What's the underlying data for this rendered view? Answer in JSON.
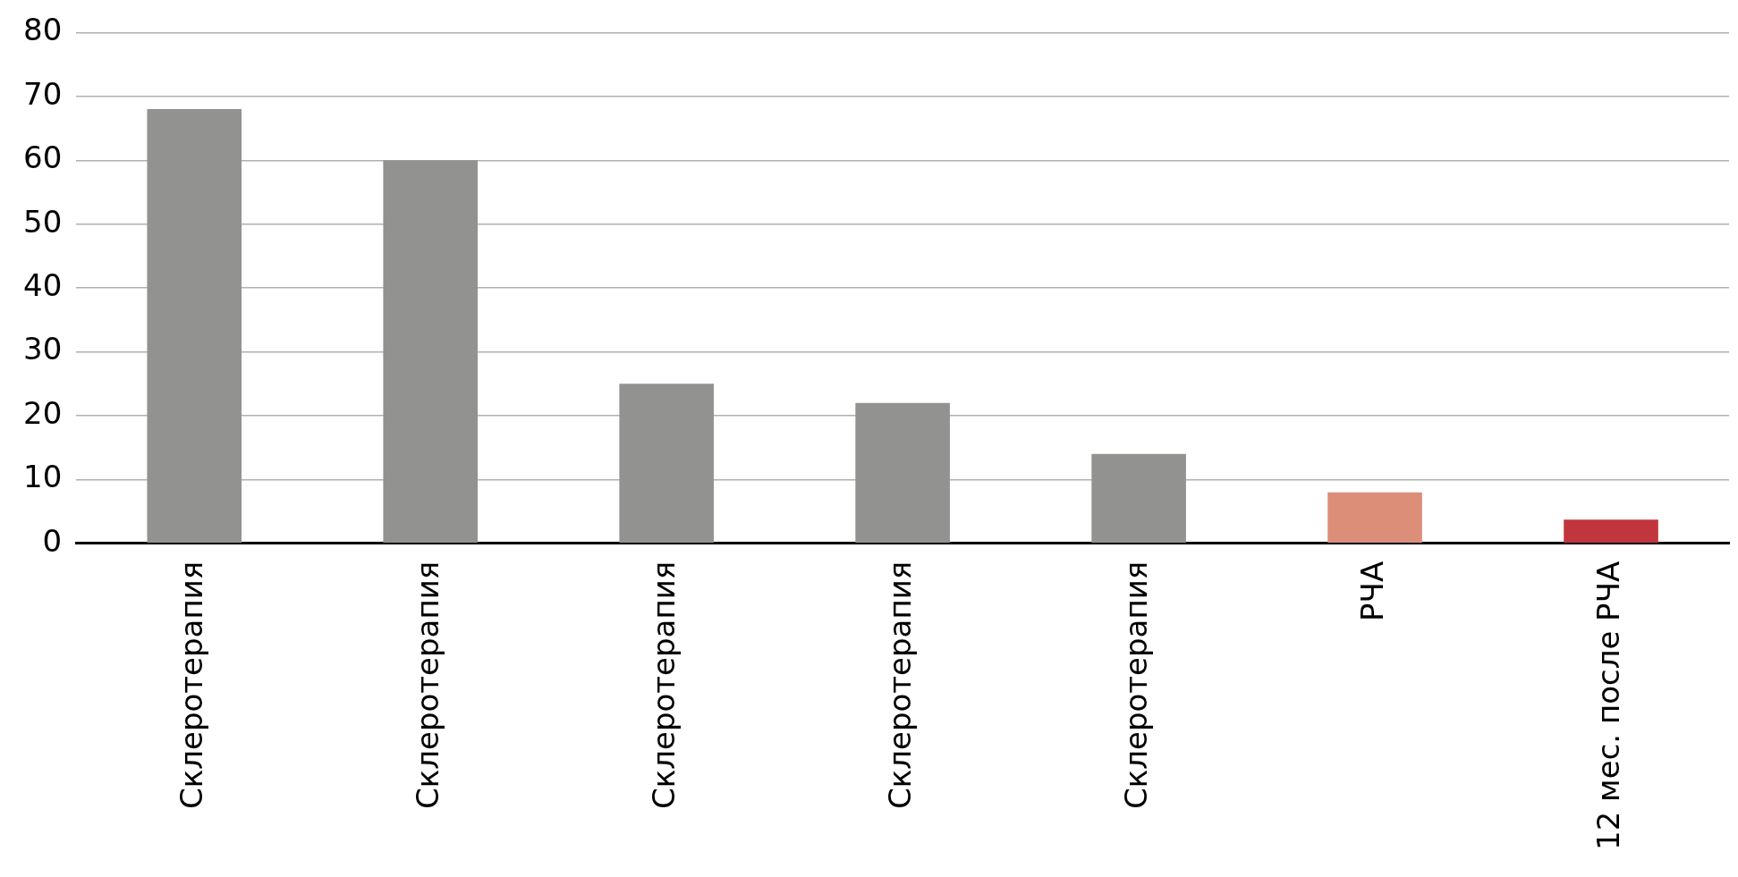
{
  "chart_data": {
    "type": "bar",
    "categories": [
      "Склеротерапия",
      "Склеротерапия",
      "Склеротерапия",
      "Склеротерапия",
      "Склеротерапия",
      "РЧА",
      "12 мес. после РЧА"
    ],
    "values": [
      68,
      60,
      25,
      22,
      14,
      8,
      3.7
    ],
    "colors": [
      "#929290",
      "#929290",
      "#929290",
      "#929290",
      "#929290",
      "#dd8e79",
      "#c0363c"
    ],
    "ylim": [
      0,
      80
    ],
    "yticks": [
      0,
      10,
      20,
      30,
      40,
      50,
      60,
      70,
      80
    ],
    "grid": "y"
  }
}
